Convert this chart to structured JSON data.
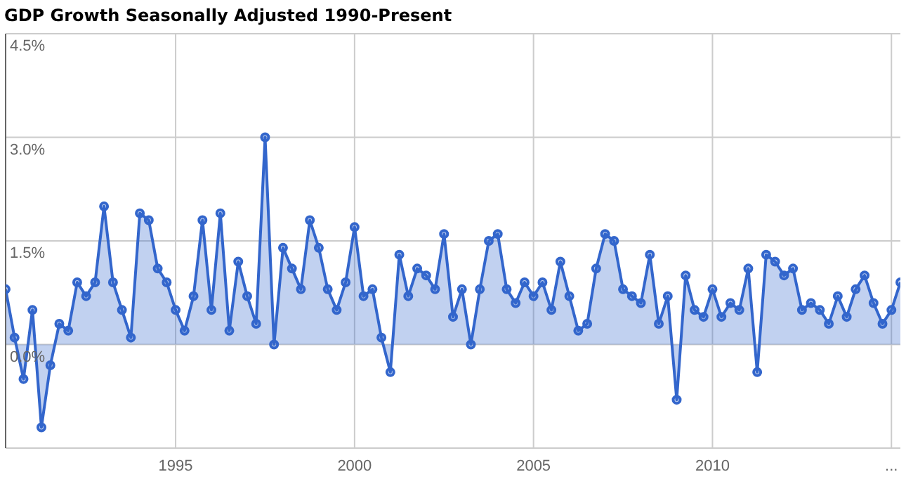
{
  "chart_data": {
    "type": "area",
    "title": "GDP Growth Seasonally Adjusted 1990-Present",
    "x": [
      1990.25,
      1990.5,
      1990.75,
      1991,
      1991.25,
      1991.5,
      1991.75,
      1992,
      1992.25,
      1992.5,
      1992.75,
      1993,
      1993.25,
      1993.5,
      1993.75,
      1994,
      1994.25,
      1994.5,
      1994.75,
      1995,
      1995.25,
      1995.5,
      1995.75,
      1996,
      1996.25,
      1996.5,
      1996.75,
      1997,
      1997.25,
      1997.5,
      1997.75,
      1998,
      1998.25,
      1998.5,
      1998.75,
      1999,
      1999.25,
      1999.5,
      1999.75,
      2000,
      2000.25,
      2000.5,
      2000.75,
      2001,
      2001.25,
      2001.5,
      2001.75,
      2002,
      2002.25,
      2002.5,
      2002.75,
      2003,
      2003.25,
      2003.5,
      2003.75,
      2004,
      2004.25,
      2004.5,
      2004.75,
      2005,
      2005.25,
      2005.5,
      2005.75,
      2006,
      2006.25,
      2006.5,
      2006.75,
      2007,
      2007.25,
      2007.5,
      2007.75,
      2008,
      2008.25,
      2008.5,
      2008.75,
      2009,
      2009.25,
      2009.5,
      2009.75,
      2010,
      2010.25,
      2010.5,
      2010.75,
      2011,
      2011.25,
      2011.5,
      2011.75,
      2012,
      2012.25,
      2012.5,
      2012.75,
      2013,
      2013.25,
      2013.5,
      2013.75,
      2014,
      2014.25,
      2014.5,
      2014.75,
      2015,
      2015.25
    ],
    "series": [
      {
        "color": "#3366cc",
        "values": [
          0.8,
          0.1,
          -0.5,
          0.5,
          -1.2,
          -0.3,
          0.3,
          0.2,
          0.9,
          0.7,
          0.9,
          2.0,
          0.9,
          0.5,
          0.1,
          1.9,
          1.8,
          1.1,
          0.9,
          0.5,
          0.2,
          0.7,
          1.8,
          0.5,
          1.9,
          0.2,
          1.2,
          0.7,
          0.3,
          3.0,
          0.0,
          1.4,
          1.1,
          0.8,
          1.8,
          1.4,
          0.8,
          0.5,
          0.9,
          1.7,
          0.7,
          0.8,
          0.1,
          -0.4,
          1.3,
          0.7,
          1.1,
          1.0,
          0.8,
          1.6,
          0.4,
          0.8,
          0.0,
          0.8,
          1.5,
          1.6,
          0.8,
          0.6,
          0.9,
          0.7,
          0.9,
          0.5,
          1.2,
          0.7,
          0.2,
          0.3,
          1.1,
          1.6,
          1.5,
          0.8,
          0.7,
          0.6,
          1.3,
          0.3,
          0.7,
          -0.8,
          1.0,
          0.5,
          0.4,
          0.8,
          0.4,
          0.6,
          0.5,
          1.1,
          -0.4,
          1.3,
          1.2,
          1.0,
          1.1,
          0.5,
          0.6,
          0.5,
          0.3,
          0.7,
          0.4,
          0.8,
          1.0,
          0.6,
          0.3,
          0.5,
          0.9
        ]
      }
    ],
    "xlim": [
      1990.25,
      2015.25
    ],
    "xticks": [
      1995,
      2000,
      2005,
      2010,
      {
        "value": 2015,
        "label": "..."
      }
    ],
    "ylim": [
      -1.5,
      4.5
    ],
    "yticks": [
      {
        "value": -1.5,
        "label": null
      },
      {
        "value": 0,
        "label": "0.0%"
      },
      {
        "value": 1.5,
        "label": "1.5%"
      },
      {
        "value": 3,
        "label": "3.0%"
      },
      {
        "value": 4.5,
        "label": "4.5%"
      }
    ],
    "grid": true,
    "marker": "circle",
    "legend": false
  }
}
